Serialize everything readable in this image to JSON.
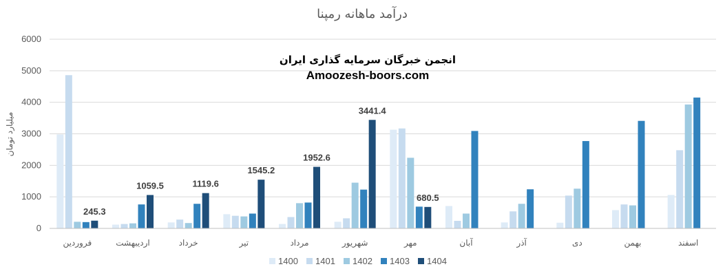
{
  "chart_data": {
    "type": "bar",
    "title": "درآمد ماهانه رمپنا",
    "ylabel": "میلیارد تومان",
    "xlabel": "",
    "ylim": [
      0,
      6000
    ],
    "yticks": [
      0,
      1000,
      2000,
      3000,
      4000,
      5000,
      6000
    ],
    "grid": true,
    "legend_position": "bottom",
    "categories": [
      "فروردین",
      "اردیبهشت",
      "خرداد",
      "تیر",
      "مرداد",
      "شهریور",
      "مهر",
      "آبان",
      "آذر",
      "دی",
      "بهمن",
      "اسفند"
    ],
    "series": [
      {
        "name": "1400",
        "color": "#deebf7",
        "values": [
          2980,
          120,
          190,
          450,
          140,
          210,
          3130,
          710,
          190,
          180,
          580,
          1060
        ]
      },
      {
        "name": "1401",
        "color": "#c6dbef",
        "values": [
          4860,
          140,
          280,
          400,
          360,
          320,
          3170,
          240,
          540,
          1040,
          760,
          2480
        ]
      },
      {
        "name": "1402",
        "color": "#9ecae1",
        "values": [
          210,
          160,
          170,
          380,
          800,
          1450,
          2240,
          470,
          780,
          1260,
          730,
          3930
        ]
      },
      {
        "name": "1403",
        "color": "#3182bd",
        "values": [
          200,
          760,
          780,
          470,
          820,
          1230,
          690,
          3090,
          1240,
          2770,
          3410,
          4150
        ]
      },
      {
        "name": "1404",
        "color": "#1f4e79",
        "values": [
          245.3,
          1059.5,
          1119.6,
          1545.2,
          1952.6,
          3441.4,
          680.5,
          null,
          null,
          null,
          null,
          null
        ]
      }
    ],
    "data_labels": [
      {
        "series": "1404",
        "category": "فروردین",
        "text": "245.3"
      },
      {
        "series": "1404",
        "category": "اردیبهشت",
        "text": "1059.5"
      },
      {
        "series": "1404",
        "category": "خرداد",
        "text": "1119.6"
      },
      {
        "series": "1404",
        "category": "تیر",
        "text": "1545.2"
      },
      {
        "series": "1404",
        "category": "مرداد",
        "text": "1952.6"
      },
      {
        "series": "1404",
        "category": "شهریور",
        "text": "3441.4"
      },
      {
        "series": "1404",
        "category": "مهر",
        "text": "680.5"
      }
    ]
  },
  "watermark": {
    "line1": "انجمن خبرگان سرمایه گذاری ایران",
    "line2": "Amoozesh-boors.com"
  }
}
